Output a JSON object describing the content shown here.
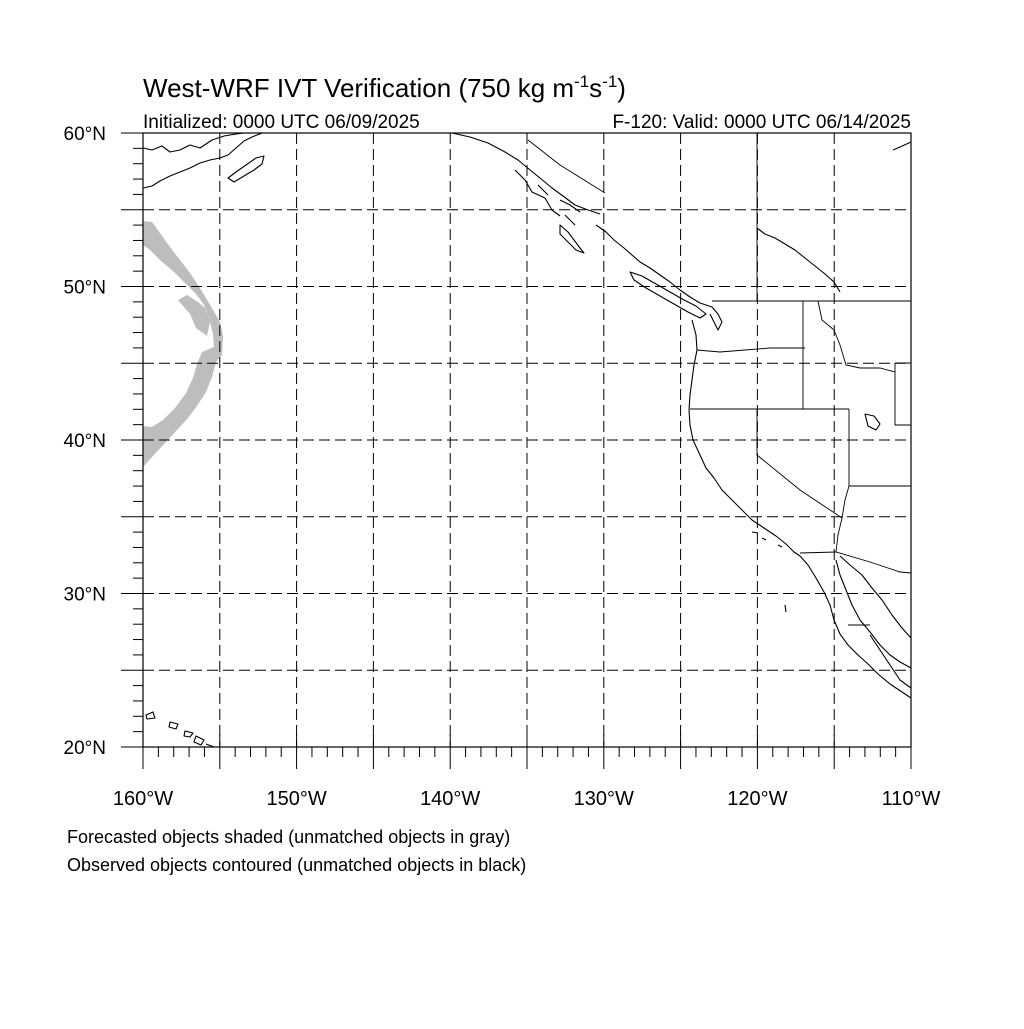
{
  "figure": {
    "title_prefix": "West-WRF IVT Verification (750 kg m",
    "title_exp1": "-1",
    "title_mid": "s",
    "title_exp2": "-1",
    "title_suffix": ")",
    "initialized": "Initialized: 0000 UTC 06/09/2025",
    "valid": "F-120: Valid: 0000 UTC 06/14/2025",
    "footnote_1": "Forecasted objects shaded (unmatched objects in gray)",
    "footnote_2": "Observed objects contoured (unmatched objects in black)"
  },
  "map": {
    "lon_range": [
      -160,
      -110
    ],
    "lat_range": [
      20,
      60
    ],
    "grid_step_deg": 5,
    "minor_tick_step_deg": 1,
    "lat_labels": [
      "20°N",
      "30°N",
      "40°N",
      "50°N",
      "60°N"
    ],
    "lon_labels": [
      "160°W",
      "150°W",
      "140°W",
      "130°W",
      "120°W",
      "110°W"
    ],
    "colors": {
      "unmatched_forecast": "#bdbdbd",
      "lines": "#000000"
    }
  }
}
